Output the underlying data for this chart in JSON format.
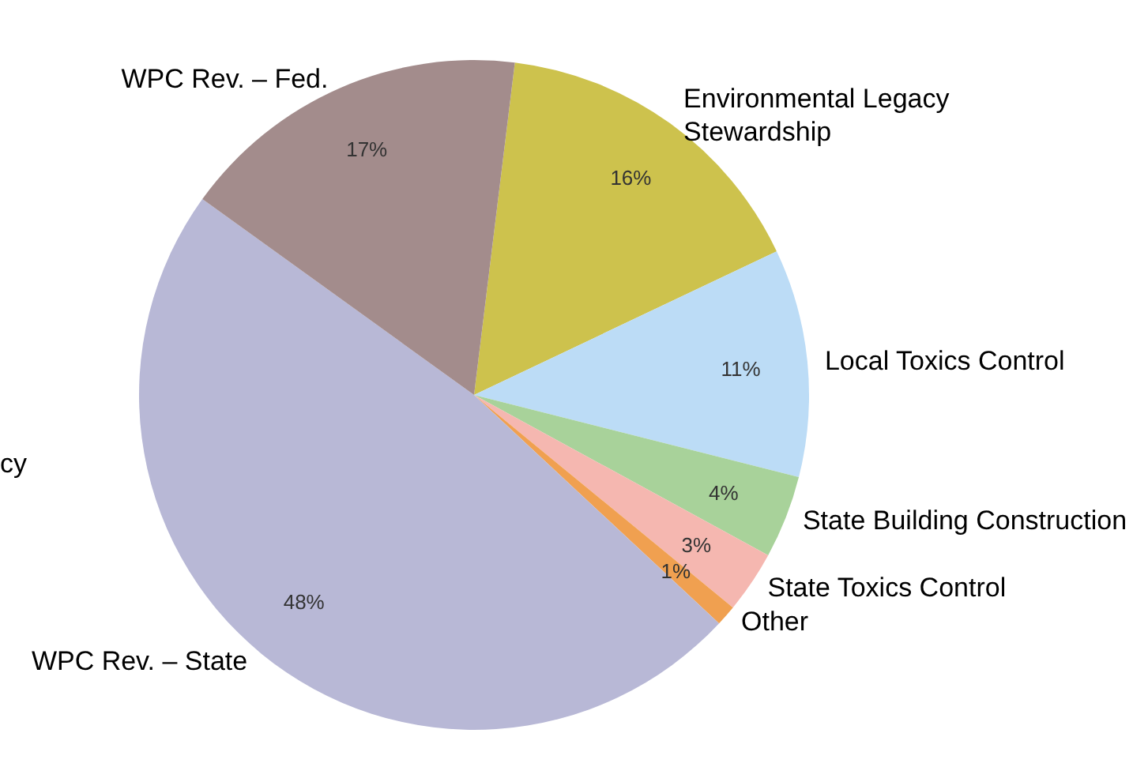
{
  "chart_data": {
    "type": "pie",
    "categories": [
      "Environmental Legacy Stewardship",
      "Local Toxics Control",
      "State Building Construction",
      "State Toxics Control",
      "Other",
      "WPC Rev. – State",
      "WPC Rev. – Fed."
    ],
    "values": [
      16,
      11,
      4,
      3,
      1,
      48,
      17
    ],
    "colors": [
      "#cdc24d",
      "#bcdcf6",
      "#a8d29a",
      "#f5b7b0",
      "#f0a050",
      "#b8b8d6",
      "#a38c8c"
    ],
    "value_labels": [
      "16%",
      "11%",
      "4%",
      "3%",
      "1%",
      "48%",
      "17%"
    ],
    "legend": false,
    "annotations": [
      "cy"
    ]
  }
}
